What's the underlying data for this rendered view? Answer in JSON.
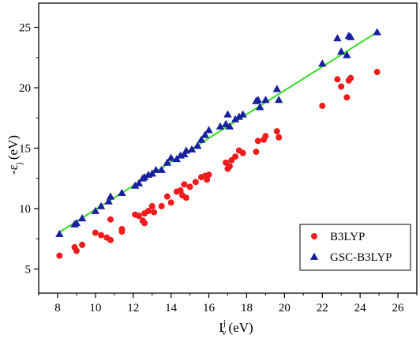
{
  "chart_data": {
    "type": "scatter",
    "title": "",
    "xlabel": {
      "main": "I",
      "superscript": "j",
      "subscript": "v",
      "unit": "(eV)"
    },
    "ylabel": {
      "prefix": "-ε",
      "subscript": "j",
      "unit": "(eV)"
    },
    "xlim": [
      7,
      27
    ],
    "ylim": [
      3,
      27
    ],
    "xticks": [
      "8",
      "10",
      "12",
      "14",
      "16",
      "18",
      "20",
      "22",
      "24",
      "26"
    ],
    "yticks": [
      "5",
      "10",
      "15",
      "20",
      "25"
    ],
    "grid": false,
    "legend_position": "bottom-right",
    "series": [
      {
        "name": "B3LYP",
        "marker": "circle",
        "color": "#ee1c1c",
        "points": [
          [
            8.1,
            6.1
          ],
          [
            8.9,
            6.8
          ],
          [
            9.0,
            6.5
          ],
          [
            9.3,
            7.0
          ],
          [
            10.0,
            8.0
          ],
          [
            10.3,
            7.8
          ],
          [
            10.6,
            7.6
          ],
          [
            10.8,
            7.4
          ],
          [
            10.8,
            9.1
          ],
          [
            11.4,
            8.3
          ],
          [
            11.4,
            8.1
          ],
          [
            12.1,
            9.5
          ],
          [
            12.3,
            9.4
          ],
          [
            12.5,
            9.0
          ],
          [
            12.6,
            8.8
          ],
          [
            12.6,
            9.6
          ],
          [
            12.8,
            9.8
          ],
          [
            13.0,
            10.2
          ],
          [
            13.1,
            9.7
          ],
          [
            13.5,
            10.2
          ],
          [
            13.8,
            11.0
          ],
          [
            14.0,
            10.5
          ],
          [
            14.3,
            11.4
          ],
          [
            14.5,
            11.5
          ],
          [
            14.6,
            11.1
          ],
          [
            14.7,
            12.0
          ],
          [
            14.8,
            10.9
          ],
          [
            15.0,
            11.8
          ],
          [
            15.3,
            12.2
          ],
          [
            15.6,
            12.6
          ],
          [
            15.8,
            12.7
          ],
          [
            15.9,
            12.4
          ],
          [
            16.0,
            12.8
          ],
          [
            16.9,
            13.8
          ],
          [
            17.0,
            13.3
          ],
          [
            17.1,
            13.5
          ],
          [
            17.2,
            14.0
          ],
          [
            17.4,
            14.3
          ],
          [
            17.6,
            14.8
          ],
          [
            17.8,
            14.6
          ],
          [
            18.5,
            14.7
          ],
          [
            18.6,
            15.6
          ],
          [
            18.9,
            15.7
          ],
          [
            19.0,
            16.0
          ],
          [
            19.6,
            16.4
          ],
          [
            19.7,
            15.9
          ],
          [
            22.0,
            18.5
          ],
          [
            22.8,
            20.7
          ],
          [
            23.0,
            20.1
          ],
          [
            23.3,
            19.2
          ],
          [
            23.4,
            20.6
          ],
          [
            23.5,
            20.8
          ],
          [
            24.9,
            21.3
          ]
        ]
      },
      {
        "name": "GSC-B3LYP",
        "marker": "triangle",
        "color": "#1820a0",
        "points": [
          [
            8.1,
            7.9
          ],
          [
            8.9,
            8.7
          ],
          [
            9.0,
            8.8
          ],
          [
            9.3,
            9.2
          ],
          [
            10.0,
            9.8
          ],
          [
            10.3,
            10.2
          ],
          [
            10.7,
            10.6
          ],
          [
            10.8,
            11.0
          ],
          [
            11.4,
            11.3
          ],
          [
            12.1,
            11.9
          ],
          [
            12.3,
            12.1
          ],
          [
            12.5,
            12.5
          ],
          [
            12.6,
            12.6
          ],
          [
            12.8,
            12.8
          ],
          [
            13.0,
            12.9
          ],
          [
            13.2,
            13.2
          ],
          [
            13.5,
            13.2
          ],
          [
            13.8,
            13.8
          ],
          [
            14.0,
            14.2
          ],
          [
            14.3,
            14.1
          ],
          [
            14.5,
            14.4
          ],
          [
            14.7,
            14.5
          ],
          [
            14.8,
            14.8
          ],
          [
            15.1,
            14.9
          ],
          [
            15.4,
            15.2
          ],
          [
            15.6,
            15.7
          ],
          [
            15.8,
            16.1
          ],
          [
            16.0,
            16.5
          ],
          [
            16.6,
            16.8
          ],
          [
            16.9,
            17.0
          ],
          [
            17.0,
            17.8
          ],
          [
            17.1,
            16.8
          ],
          [
            17.4,
            17.4
          ],
          [
            17.6,
            17.6
          ],
          [
            17.8,
            17.8
          ],
          [
            18.5,
            18.9
          ],
          [
            18.6,
            19.0
          ],
          [
            18.7,
            18.4
          ],
          [
            19.0,
            19.0
          ],
          [
            19.6,
            19.9
          ],
          [
            19.7,
            19.0
          ],
          [
            22.0,
            22.0
          ],
          [
            22.8,
            24.1
          ],
          [
            23.0,
            23.0
          ],
          [
            23.3,
            22.7
          ],
          [
            23.4,
            24.3
          ],
          [
            23.5,
            24.2
          ],
          [
            24.9,
            24.6
          ]
        ]
      }
    ],
    "fit_line": {
      "color": "#33dd22",
      "x": [
        8.1,
        24.9
      ],
      "y": [
        8.05,
        24.6
      ]
    }
  }
}
